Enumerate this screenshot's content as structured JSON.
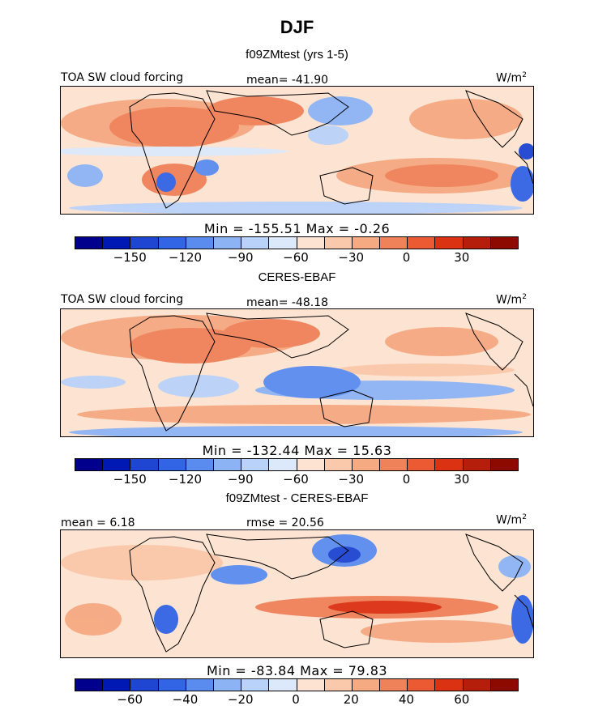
{
  "figure": {
    "season": "DJF"
  },
  "panels": [
    {
      "subtitle": "f09ZMtest (yrs 1-5)",
      "left_label": "TOA SW cloud forcing",
      "center_label": "mean= -41.90",
      "units": "W/m",
      "units_sup": "2",
      "minmax": "Min = -155.51 Max = -0.26",
      "ticks": [
        "-150",
        "-120",
        "-90",
        "-60",
        "-30",
        "0",
        "30"
      ]
    },
    {
      "subtitle": "CERES-EBAF",
      "left_label": "TOA SW cloud forcing",
      "center_label": "mean= -48.18",
      "units": "W/m",
      "units_sup": "2",
      "minmax": "Min = -132.44 Max = 15.63",
      "ticks": [
        "-150",
        "-120",
        "-90",
        "-60",
        "-30",
        "0",
        "30"
      ]
    },
    {
      "subtitle": "f09ZMtest - CERES-EBAF",
      "left_label": "mean = 6.18",
      "center_label": "rmse = 20.56",
      "units": "W/m",
      "units_sup": "2",
      "minmax": "Min = -83.84 Max = 79.83",
      "ticks": [
        "-60",
        "-40",
        "-20",
        "0",
        "20",
        "40",
        "60"
      ]
    }
  ],
  "colorbar_colors": [
    "#00008c",
    "#0019b4",
    "#1e46d2",
    "#3264e6",
    "#5a8cf0",
    "#8cb4f5",
    "#b9d2fa",
    "#dce9fb",
    "#fde3d2",
    "#fac8aa",
    "#f5aa82",
    "#f0825a",
    "#eb5a32",
    "#dc3214",
    "#b41e0a",
    "#8c0a00"
  ]
}
